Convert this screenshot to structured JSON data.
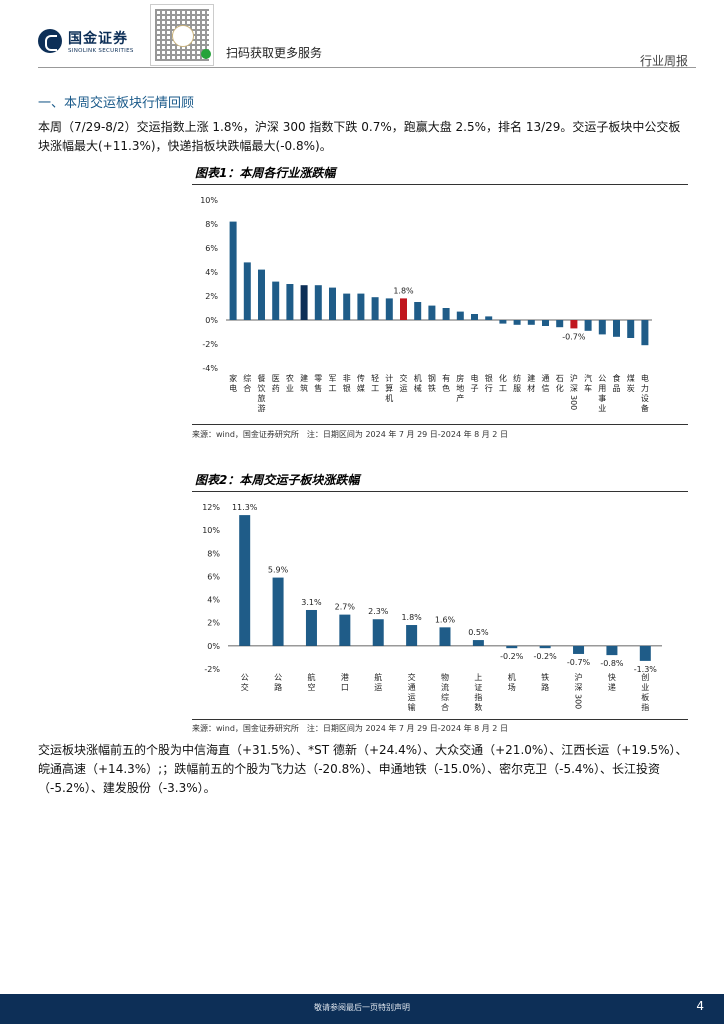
{
  "header": {
    "logo_cn": "国金证券",
    "logo_en": "SINOLINK SECURITIES",
    "qr_text": "扫码获取更多服务",
    "tag": "行业周报"
  },
  "section": {
    "title": "一、本周交运板块行情回顾"
  },
  "para1": "本周（7/29-8/2）交运指数上涨 1.8%，沪深 300 指数下跌 0.7%，跑赢大盘 2.5%，排名 13/29。交运子板块中公交板块涨幅最大(+11.3%)，快递指板块跌幅最大(-0.8%)。",
  "fig1": {
    "title": "图表1：本周各行业涨跌幅",
    "source": "来源：wind，国金证券研究所　注：日期区间为 2024 年 7 月 29 日-2024 年 8 月 2 日"
  },
  "fig2": {
    "title": "图表2：本周交运子板块涨跌幅",
    "source": "来源：wind，国金证券研究所　注：日期区间为 2024 年 7 月 29 日-2024 年 8 月 2 日"
  },
  "para2": "交运板块涨幅前五的个股为中信海直（+31.5%）、*ST 德新（+24.4%）、大众交通（+21.0%）、江西长运（+19.5%）、皖通高速（+14.3%）;；跌幅前五的个股为飞力达（-20.8%）、申通地铁（-15.0%）、密尔克卫（-5.4%）、长江投资（-5.2%）、建发股份（-3.3%）。",
  "footer": {
    "text": "敬请参阅最后一页特别声明",
    "page": "4"
  },
  "colors": {
    "bar": "#1f5c88",
    "highlight": "#c0161e",
    "navy": "#0d2f57"
  },
  "chart_data": [
    {
      "type": "bar",
      "title": "图表1：本周各行业涨跌幅",
      "ylim": [
        -4,
        10
      ],
      "yticks": [
        -4,
        -2,
        0,
        2,
        4,
        6,
        8,
        10
      ],
      "ytick_format": "percent",
      "categories": [
        "家电",
        "综合",
        "餐饮旅游",
        "医药",
        "农业",
        "建筑",
        "零售",
        "军工",
        "非银",
        "传媒",
        "轻工",
        "计算机",
        "交运",
        "机械",
        "钢铁",
        "有色",
        "房地产",
        "电子",
        "银行",
        "化工",
        "纺服",
        "建材",
        "通信",
        "石化",
        "沪深300",
        "汽车",
        "公用事业",
        "食品",
        "煤炭",
        "电力设备"
      ],
      "values": [
        8.2,
        4.8,
        4.2,
        3.2,
        3.0,
        2.9,
        2.9,
        2.7,
        2.2,
        2.2,
        1.9,
        1.8,
        1.8,
        1.5,
        1.2,
        1.0,
        0.7,
        0.5,
        0.3,
        -0.3,
        -0.4,
        -0.4,
        -0.5,
        -0.6,
        -0.7,
        -0.9,
        -1.2,
        -1.4,
        -1.5,
        -2.1
      ],
      "highlight": {
        "交运": "red",
        "沪深300": "red",
        "建筑": "dark"
      },
      "data_labels": {
        "交运": "1.8%",
        "沪深300": "-0.7%"
      }
    },
    {
      "type": "bar",
      "title": "图表2：本周交运子板块涨跌幅",
      "ylim": [
        -2,
        12
      ],
      "yticks": [
        -2,
        0,
        2,
        4,
        6,
        8,
        10,
        12
      ],
      "ytick_format": "percent",
      "categories": [
        "公交",
        "公路",
        "航空",
        "港口",
        "航运",
        "交通运输",
        "物流综合",
        "上证指数",
        "机场",
        "铁路",
        "沪深300",
        "快递",
        "创业板指"
      ],
      "values": [
        11.3,
        5.9,
        3.1,
        2.7,
        2.3,
        1.8,
        1.6,
        0.5,
        -0.2,
        -0.2,
        -0.7,
        -0.8,
        -1.3
      ],
      "data_labels": [
        "11.3%",
        "5.9%",
        "3.1%",
        "2.7%",
        "2.3%",
        "1.8%",
        "1.6%",
        "0.5%",
        "-0.2%",
        "-0.2%",
        "-0.7%",
        "-0.8%",
        "-1.3%"
      ]
    }
  ]
}
